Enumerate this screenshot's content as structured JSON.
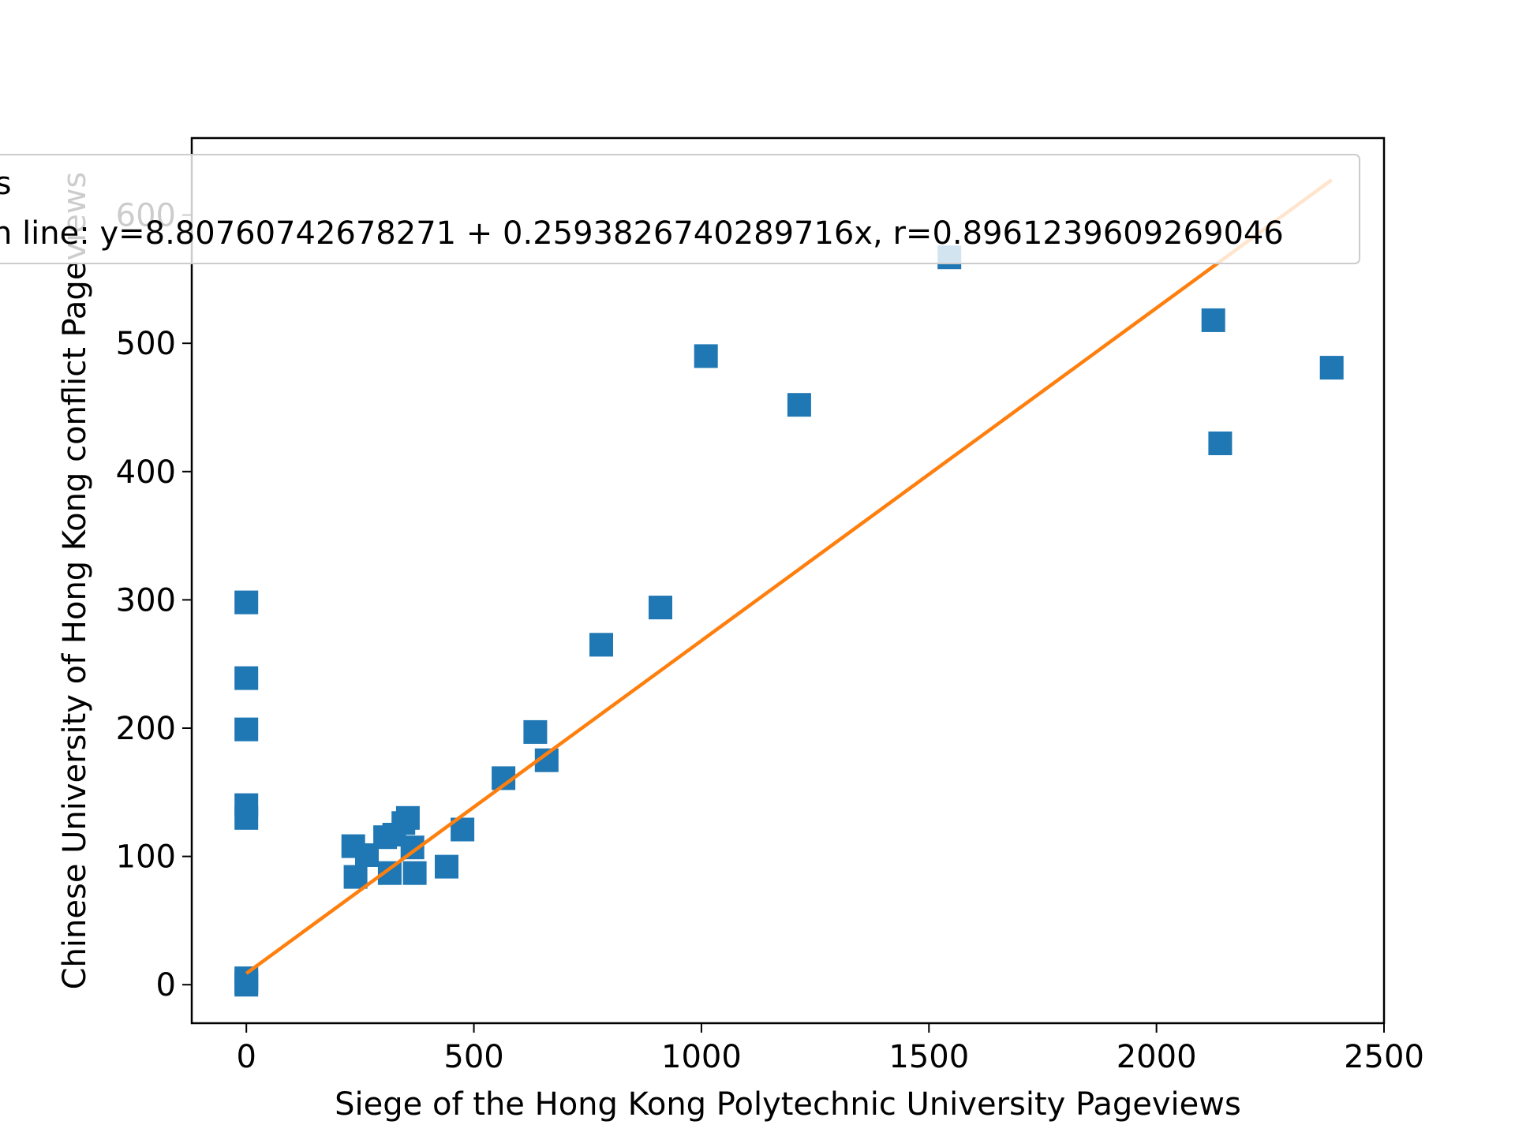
{
  "chart_data": {
    "type": "scatter",
    "xlabel": "Siege of the Hong Kong Polytechnic University Pageviews",
    "ylabel": "Chinese University of Hong Kong conflict Pageviews",
    "xlim": [
      -120,
      2500
    ],
    "ylim": [
      -30,
      660
    ],
    "xticks": [
      0,
      500,
      1000,
      1500,
      2000,
      2500
    ],
    "yticks": [
      0,
      100,
      200,
      300,
      400,
      500,
      600
    ],
    "xtick_labels": [
      "0",
      "500",
      "1000",
      "1500",
      "2000",
      "2500"
    ],
    "ytick_labels": [
      "0",
      "100",
      "200",
      "300",
      "400",
      "500",
      "600"
    ],
    "grid": false,
    "legend_placement": "top",
    "colors": {
      "points": "#1f77b4",
      "fit_line": "#ff7f0e"
    },
    "series": [
      {
        "name": "ts",
        "kind": "scatter",
        "marker": "square",
        "points": [
          [
            0,
            0
          ],
          [
            0,
            2
          ],
          [
            0,
            5
          ],
          [
            0,
            130
          ],
          [
            0,
            140
          ],
          [
            0,
            199
          ],
          [
            0,
            239
          ],
          [
            0,
            298
          ],
          [
            235,
            108
          ],
          [
            240,
            84
          ],
          [
            265,
            101
          ],
          [
            305,
            115
          ],
          [
            315,
            87
          ],
          [
            325,
            117
          ],
          [
            345,
            126
          ],
          [
            355,
            130
          ],
          [
            365,
            107
          ],
          [
            370,
            87
          ],
          [
            440,
            92
          ],
          [
            475,
            121
          ],
          [
            565,
            161
          ],
          [
            635,
            197
          ],
          [
            660,
            175
          ],
          [
            780,
            265
          ],
          [
            910,
            294
          ],
          [
            1010,
            490
          ],
          [
            1215,
            452
          ],
          [
            1545,
            567
          ],
          [
            2125,
            518
          ],
          [
            2140,
            422
          ],
          [
            2385,
            481
          ]
        ]
      },
      {
        "name": "n line: y=8.80760742678271 + 0.2593826740289716x, r=0.8961239609269046",
        "kind": "line",
        "intercept": 8.80760742678271,
        "slope": 0.2593826740289716,
        "x_range": [
          0,
          2385
        ]
      }
    ]
  }
}
